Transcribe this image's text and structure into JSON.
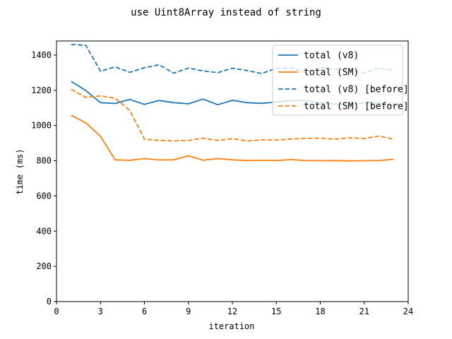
{
  "chart_data": {
    "type": "line",
    "title": "use Uint8Array instead of string",
    "xlabel": "iteration",
    "ylabel": "time (ms)",
    "xlim": [
      0,
      24
    ],
    "ylim": [
      0,
      1480
    ],
    "xticks": [
      0,
      3,
      6,
      9,
      12,
      15,
      18,
      21,
      24
    ],
    "yticks": [
      0,
      200,
      400,
      600,
      800,
      1000,
      1200,
      1400
    ],
    "grid": false,
    "legend_position": "top-right",
    "x": [
      1,
      2,
      3,
      4,
      5,
      6,
      7,
      8,
      9,
      10,
      11,
      12,
      13,
      14,
      15,
      16,
      17,
      18,
      19,
      20,
      21,
      22,
      23
    ],
    "series": [
      {
        "name": "total (v8)",
        "color": "#1f77b4",
        "style": "solid",
        "values": [
          1250,
          1198,
          1130,
          1125,
          1148,
          1120,
          1142,
          1130,
          1123,
          1150,
          1118,
          1143,
          1130,
          1126,
          1133,
          1142,
          1142,
          1128,
          1122,
          1118,
          1130,
          1128,
          1110
        ]
      },
      {
        "name": "total (SM)",
        "color": "#ff7f0e",
        "style": "solid",
        "values": [
          1058,
          1015,
          938,
          805,
          802,
          812,
          804,
          805,
          828,
          803,
          812,
          805,
          801,
          802,
          801,
          806,
          801,
          800,
          801,
          799,
          800,
          801,
          808
        ]
      },
      {
        "name": "total (v8) [before]",
        "color": "#1f77b4",
        "style": "dashed",
        "values": [
          1460,
          1455,
          1308,
          1333,
          1302,
          1328,
          1345,
          1297,
          1326,
          1310,
          1300,
          1325,
          1312,
          1295,
          1325,
          1328,
          1300,
          1330,
          1320,
          1315,
          1297,
          1325,
          1313
        ]
      },
      {
        "name": "total (SM) [before]",
        "color": "#ff7f0e",
        "style": "dashed",
        "values": [
          1205,
          1160,
          1168,
          1155,
          1085,
          922,
          915,
          913,
          915,
          928,
          915,
          925,
          912,
          918,
          918,
          923,
          927,
          928,
          922,
          930,
          926,
          940,
          922
        ]
      }
    ]
  }
}
